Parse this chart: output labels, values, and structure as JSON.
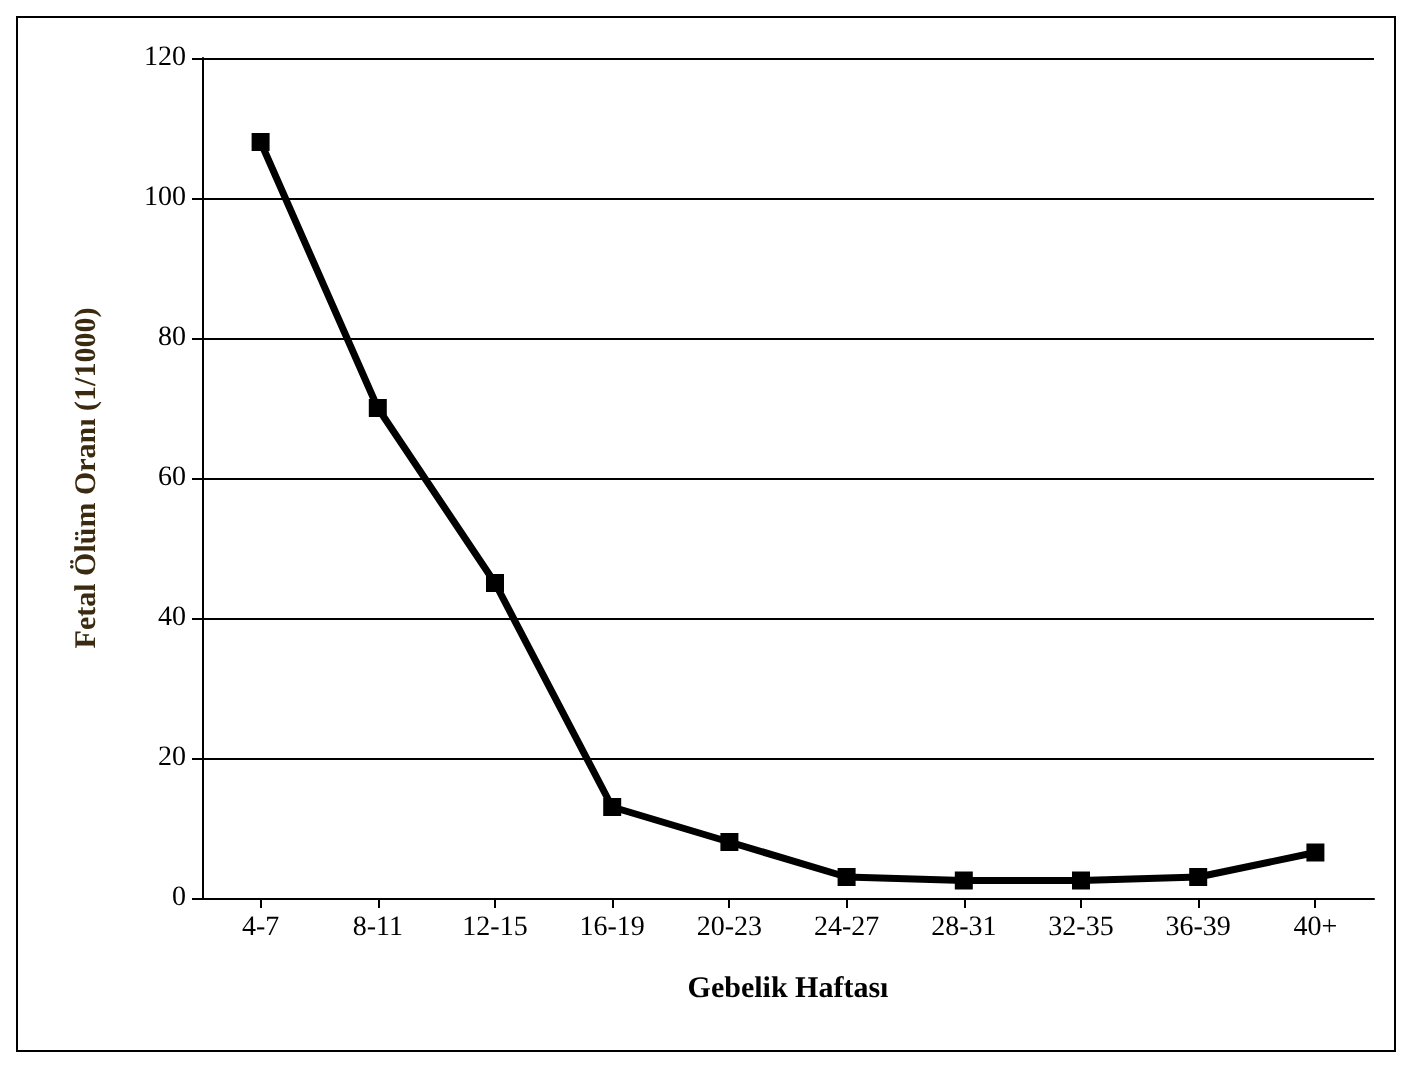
{
  "chart_data": {
    "type": "line",
    "xlabel": "Gebelik Haftası",
    "ylabel": "Fetal Ölüm Oranı (1/1000)",
    "categories": [
      "4-7",
      "8-11",
      "12-15",
      "16-19",
      "20-23",
      "24-27",
      "28-31",
      "32-35",
      "36-39",
      "40+"
    ],
    "series": [
      {
        "color": "#000000",
        "values": [
          108,
          70,
          45,
          13,
          8,
          3,
          2.5,
          2.5,
          3,
          6.5
        ]
      }
    ],
    "ylim": [
      0,
      120
    ],
    "yticks": [
      0,
      20,
      40,
      60,
      80,
      100,
      120
    ],
    "grid": "y",
    "marker": "square",
    "line_style": "solid"
  }
}
